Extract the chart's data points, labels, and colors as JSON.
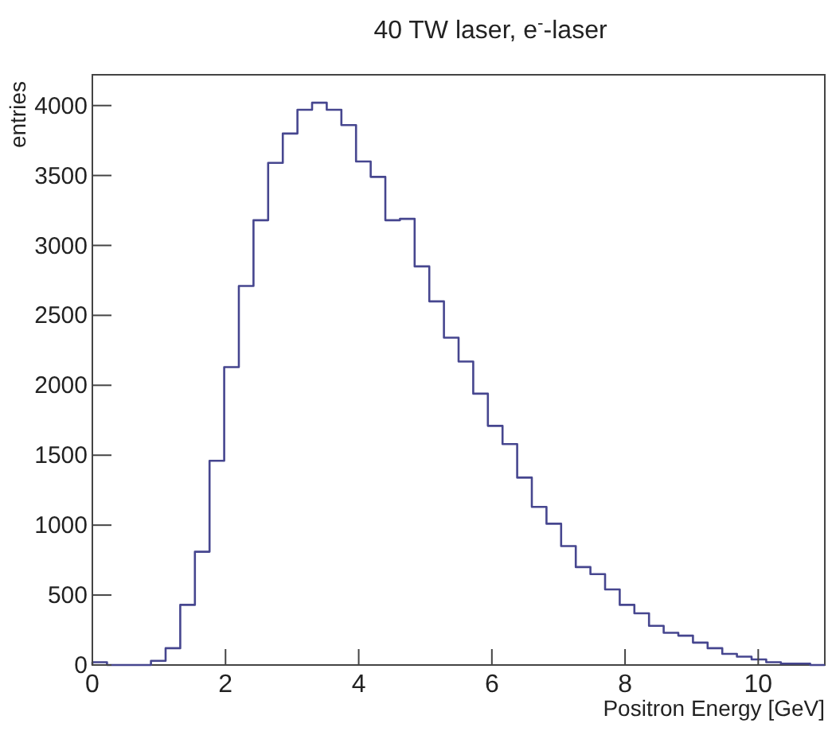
{
  "chart_data": {
    "type": "histogram",
    "title": "40 TW laser, e$^{-}$-laser",
    "xlabel": "Positron Energy [GeV]",
    "ylabel": "entries",
    "color": "#46468f",
    "bins": [
      0,
      0.22,
      0.44,
      0.66,
      0.88,
      1.1,
      1.32,
      1.54,
      1.76,
      1.98,
      2.2,
      2.42,
      2.64,
      2.86,
      3.08,
      3.3,
      3.52,
      3.74,
      3.96,
      4.18,
      4.4,
      4.62,
      4.84,
      5.06,
      5.28,
      5.5,
      5.72,
      5.94,
      6.16,
      6.38,
      6.6,
      6.82,
      7.04,
      7.26,
      7.48,
      7.7,
      7.92,
      8.14,
      8.36,
      8.58,
      8.8,
      9.02,
      9.24,
      9.46,
      9.68,
      9.9,
      10.12,
      10.34,
      10.56,
      10.78,
      11
    ],
    "values": [
      20,
      0,
      0,
      0,
      30,
      120,
      430,
      810,
      1460,
      2130,
      2710,
      3180,
      3590,
      3800,
      3970,
      4020,
      3970,
      3860,
      3600,
      3490,
      3180,
      3190,
      2850,
      2600,
      2340,
      2170,
      1940,
      1710,
      1580,
      1340,
      1130,
      1010,
      850,
      700,
      650,
      540,
      430,
      370,
      280,
      230,
      210,
      160,
      120,
      80,
      60,
      40,
      20,
      10,
      10,
      0
    ],
    "xlim": [
      0,
      11
    ],
    "xticks": [
      0,
      2,
      4,
      6,
      8,
      10
    ],
    "ylim": [
      0,
      4220
    ],
    "yticks": [
      0,
      500,
      1000,
      1500,
      2000,
      2500,
      3000,
      3500,
      4000
    ],
    "grid": false
  }
}
